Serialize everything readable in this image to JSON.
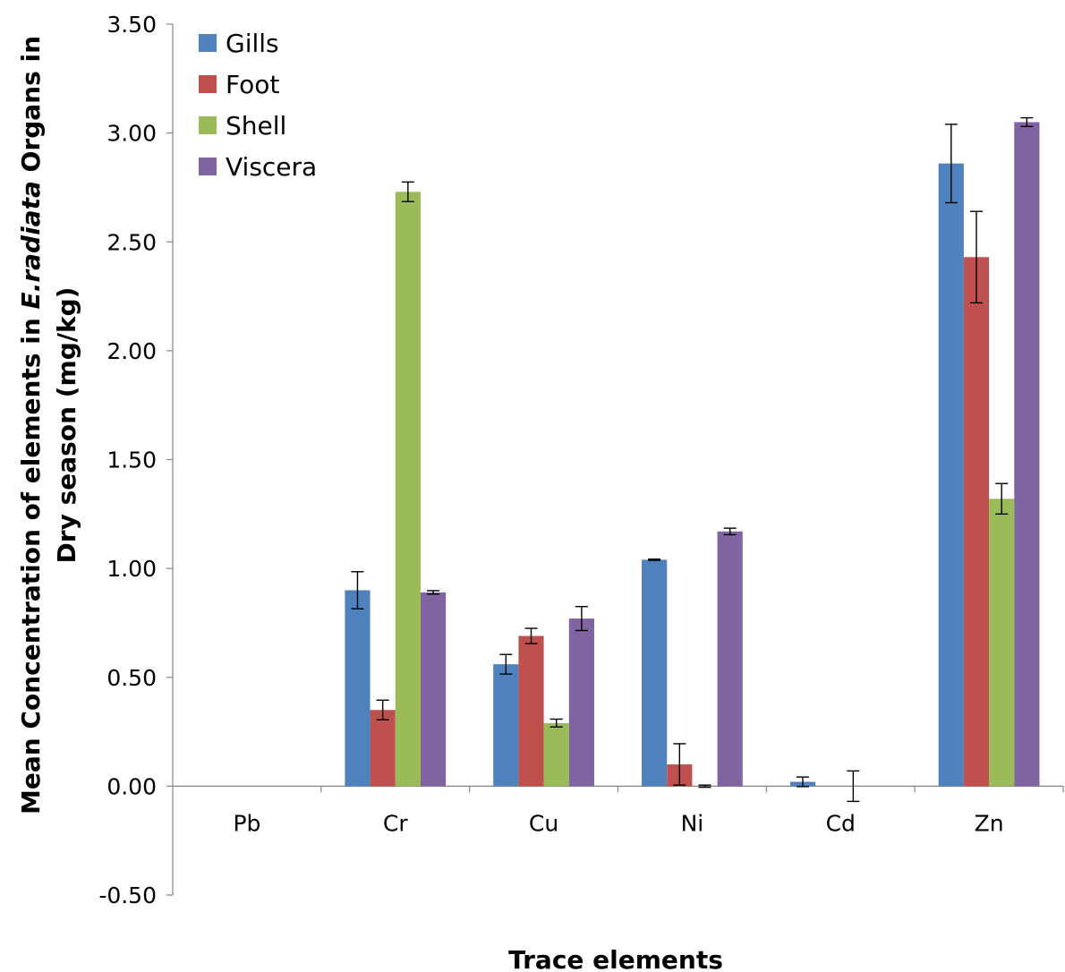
{
  "chart_data": {
    "type": "bar",
    "ylabel": {
      "line1_pre": "Mean Concentration of elements in",
      "line1_italic": "E.radiata",
      "line1_post": "Organs in",
      "line2": "Dry season (mg/kg)"
    },
    "xlabel": "Trace elements",
    "categories": [
      "Pb",
      "Cr",
      "Cu",
      "Ni",
      "Cd",
      "Zn"
    ],
    "ylim": [
      -0.5,
      3.5
    ],
    "ytick_values": [
      -0.5,
      0,
      0.5,
      1,
      1.5,
      2,
      2.5,
      3,
      3.5
    ],
    "ytick_labels": [
      "-0.50",
      "0.00",
      "0.50",
      "1.00",
      "1.50",
      "2.00",
      "2.50",
      "3.00",
      "3.50"
    ],
    "grid": false,
    "legend_position": "top-left",
    "series": [
      {
        "name": "Gills",
        "color": "#4F81BD",
        "values": [
          0,
          0.9,
          0.56,
          1.04,
          0.02,
          2.86
        ],
        "errors": [
          0,
          0.085,
          0.045,
          0.003,
          0.022,
          0.18
        ]
      },
      {
        "name": "Foot",
        "color": "#C0504D",
        "values": [
          0,
          0.35,
          0.69,
          0.1,
          0,
          2.43
        ],
        "errors": [
          0,
          0.045,
          0.035,
          0.095,
          0,
          0.21
        ]
      },
      {
        "name": "Shell",
        "color": "#9BBB59",
        "values": [
          0,
          2.73,
          0.29,
          0,
          0,
          1.32
        ],
        "errors": [
          0,
          0.045,
          0.018,
          0.005,
          0.07,
          0.07
        ]
      },
      {
        "name": "Viscera",
        "color": "#8064A2",
        "values": [
          0,
          0.89,
          0.77,
          1.17,
          0,
          3.05
        ],
        "errors": [
          0,
          0.008,
          0.055,
          0.015,
          0,
          0.02
        ]
      }
    ]
  }
}
